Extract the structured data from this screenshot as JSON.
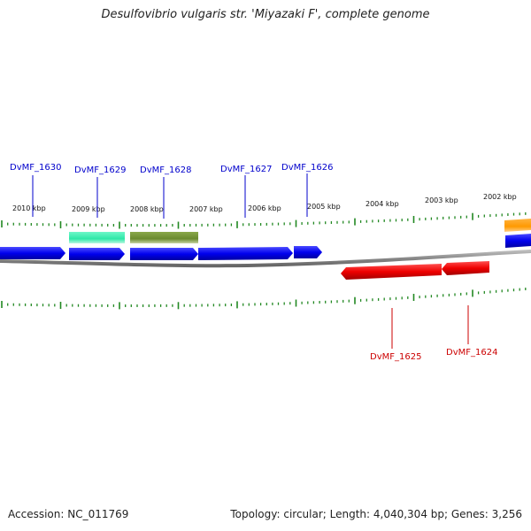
{
  "title": "Desulfovibrio vulgaris str. 'Miyazaki F', complete genome",
  "accession": "Accession: NC_011769",
  "summary": "Topology: circular; Length: 4,040,304 bp; Genes: 3,256",
  "kbp_labels": [
    "2010 kbp",
    "2009 kbp",
    "2008 kbp",
    "2007 kbp",
    "2006 kbp",
    "2005 kbp",
    "2004 kbp",
    "2003 kbp",
    "2002 kbp"
  ],
  "genes_forward": [
    "DvMF_1630",
    "DvMF_1629",
    "DvMF_1628",
    "DvMF_1627",
    "DvMF_1626"
  ],
  "genes_reverse": [
    "DvMF_1625",
    "DvMF_1624"
  ],
  "colors": {
    "forward_gene": "#0000ee",
    "reverse_gene": "#ee0000",
    "teal_feature": "#2ee8a8",
    "olive_feature": "#6b8a2e",
    "orange_feature": "#ff9900",
    "ticks": "#228822",
    "backbone": "#888888"
  }
}
